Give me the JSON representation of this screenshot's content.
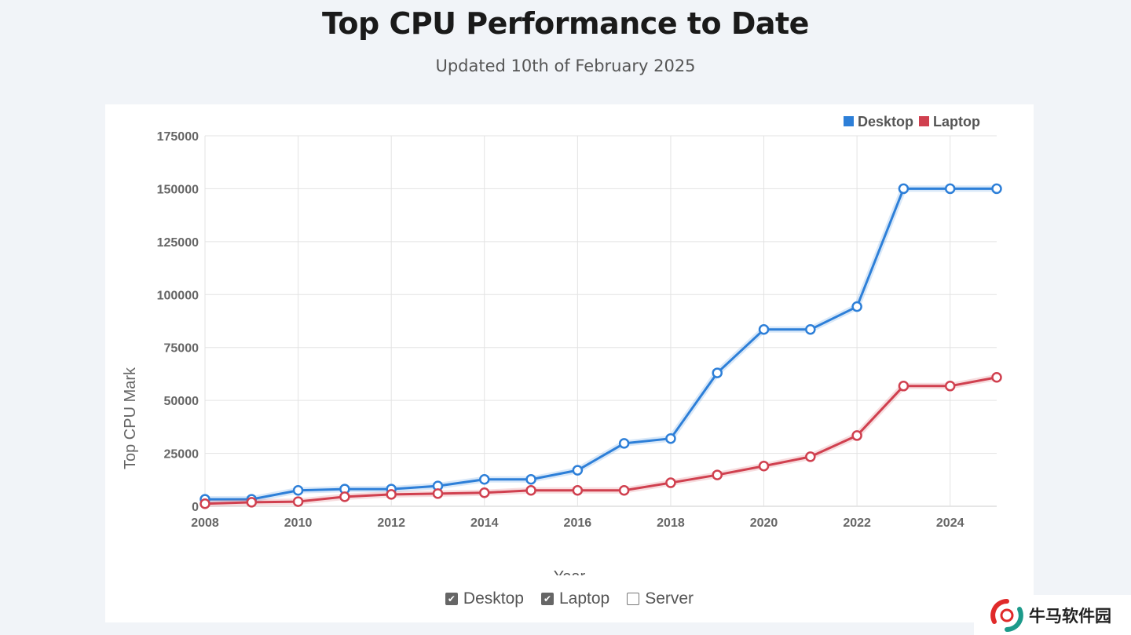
{
  "header": {
    "title": "Top CPU Performance to Date",
    "subtitle": "Updated 10th of February 2025"
  },
  "chart_data": {
    "type": "line",
    "title": "Top CPU Performance to Date",
    "subtitle": "Updated 10th of February 2025",
    "xlabel": "Year",
    "ylabel": "Top CPU Mark",
    "x": [
      2008,
      2009,
      2010,
      2011,
      2012,
      2013,
      2014,
      2015,
      2016,
      2017,
      2018,
      2019,
      2020,
      2021,
      2022,
      2023,
      2024,
      2025
    ],
    "xlim": [
      2008,
      2025
    ],
    "ylim": [
      0,
      175000
    ],
    "x_ticks": [
      "2008",
      "2010",
      "2012",
      "2014",
      "2016",
      "2018",
      "2020",
      "2022",
      "2024"
    ],
    "y_ticks": [
      "0",
      "25000",
      "50000",
      "75000",
      "100000",
      "125000",
      "150000",
      "175000"
    ],
    "grid": true,
    "legend_position": "top-right",
    "series": [
      {
        "name": "Desktop",
        "color": "#2d7fd8",
        "values": [
          3300,
          3300,
          7500,
          8100,
          8100,
          9600,
          12700,
          12700,
          17000,
          29700,
          32000,
          63000,
          83500,
          83500,
          94300,
          150000,
          150000,
          150000
        ]
      },
      {
        "name": "Laptop",
        "color": "#d0404f",
        "values": [
          1200,
          1900,
          2200,
          4500,
          5600,
          6000,
          6400,
          7500,
          7500,
          7500,
          11100,
          14800,
          19000,
          23400,
          33400,
          56800,
          56800,
          60900
        ]
      }
    ]
  },
  "toggles": [
    {
      "label": "Desktop",
      "checked": true
    },
    {
      "label": "Laptop",
      "checked": true
    },
    {
      "label": "Server",
      "checked": false
    }
  ],
  "watermark": {
    "text": "牛马软件园"
  }
}
